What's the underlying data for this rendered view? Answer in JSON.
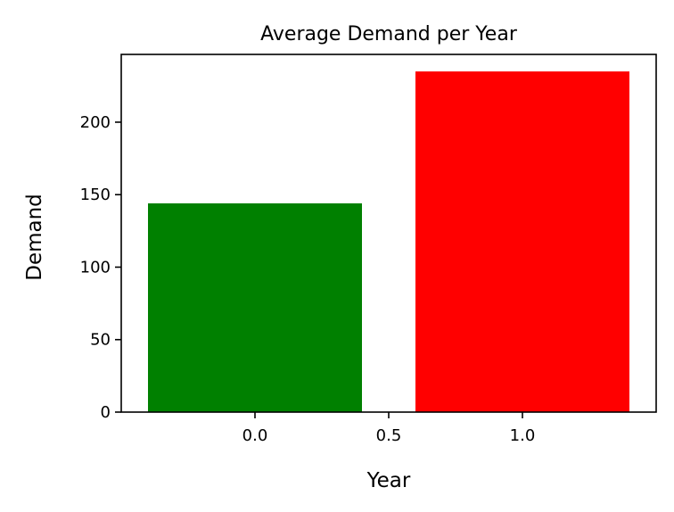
{
  "chart_data": {
    "type": "bar",
    "title": "Average Demand per Year",
    "xlabel": "Year",
    "ylabel": "Demand",
    "bars": [
      {
        "x": 0.0,
        "width": 0.8,
        "value": 144,
        "color": "#008000"
      },
      {
        "x": 1.0,
        "width": 0.8,
        "value": 235,
        "color": "#ff0000"
      }
    ],
    "xlim": [
      -0.5,
      1.5
    ],
    "ylim": [
      0,
      246.75
    ],
    "x_ticks": [
      {
        "value": 0.0,
        "label": "0.0"
      },
      {
        "value": 0.5,
        "label": "0.5"
      },
      {
        "value": 1.0,
        "label": "1.0"
      }
    ],
    "y_ticks": [
      {
        "value": 0,
        "label": "0"
      },
      {
        "value": 50,
        "label": "50"
      },
      {
        "value": 100,
        "label": "100"
      },
      {
        "value": 150,
        "label": "150"
      },
      {
        "value": 200,
        "label": "200"
      }
    ],
    "grid": false,
    "legend": "none"
  }
}
